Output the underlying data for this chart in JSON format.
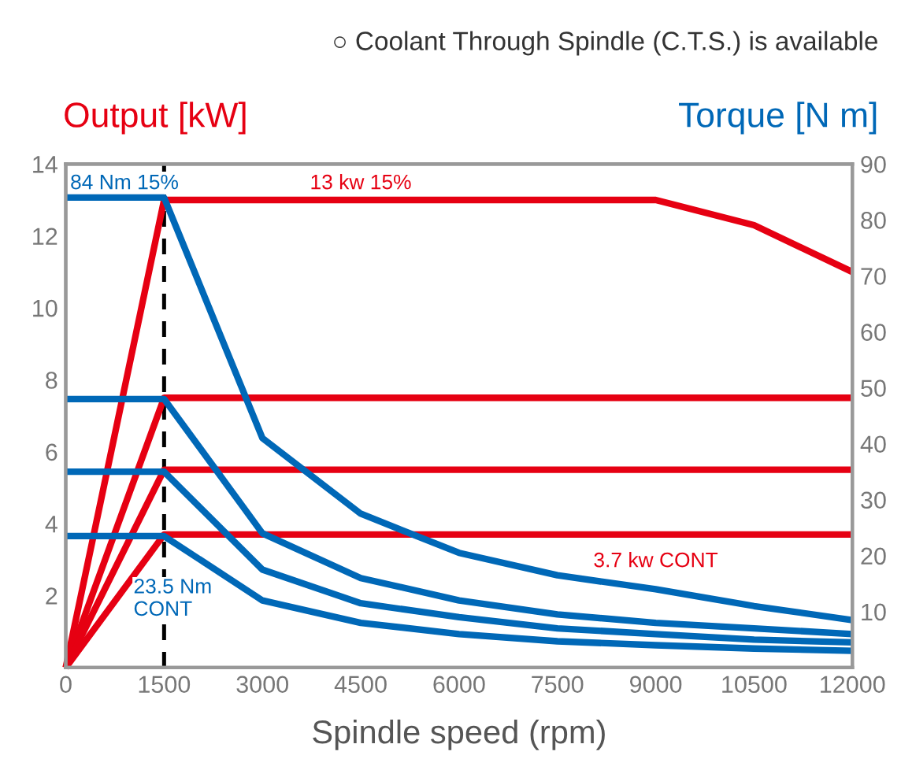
{
  "chart_data": {
    "type": "line",
    "subtitle": "○ Coolant Through Spindle (C.T.S.) is available",
    "xlabel": "Spindle speed (rpm)",
    "ylabel": "Output [kW]",
    "y2label": "Torque [N m]",
    "series": [
      {
        "color": "#e60012",
        "x": [
          0,
          1500,
          3000,
          4500,
          6000,
          7500,
          9000,
          10500,
          12000
        ],
        "values": [
          0,
          13,
          13,
          13,
          13,
          13,
          13,
          12.3,
          11
        ]
      },
      {
        "color": "#e60012",
        "x": [
          0,
          1500,
          12000
        ],
        "values": [
          0,
          7.5,
          7.5
        ]
      },
      {
        "color": "#e60012",
        "x": [
          0,
          1500,
          12000
        ],
        "values": [
          0,
          5.5,
          5.5
        ]
      },
      {
        "color": "#e60012",
        "x": [
          0,
          1500,
          12000
        ],
        "values": [
          0,
          3.7,
          3.7
        ]
      },
      {
        "color": "#0068b7",
        "axis": "y2",
        "x": [
          0,
          1500,
          3000,
          4500,
          6000,
          7500,
          9000,
          10500,
          12000
        ],
        "values": [
          84,
          84,
          41,
          27.5,
          20.5,
          16.5,
          14,
          11,
          8.5
        ]
      },
      {
        "color": "#0068b7",
        "axis": "y2",
        "x": [
          0,
          1500,
          3000,
          4500,
          6000,
          7500,
          9000,
          10500,
          12000
        ],
        "values": [
          48,
          48,
          24,
          16,
          12,
          9.5,
          8,
          7,
          6
        ]
      },
      {
        "color": "#0068b7",
        "axis": "y2",
        "x": [
          0,
          1500,
          3000,
          4500,
          6000,
          7500,
          9000,
          10500,
          12000
        ],
        "values": [
          35,
          35,
          17.5,
          11.5,
          9,
          7,
          6,
          5,
          4.5
        ]
      },
      {
        "color": "#0068b7",
        "axis": "y2",
        "x": [
          0,
          1500,
          3000,
          4500,
          6000,
          7500,
          9000,
          10500,
          12000
        ],
        "values": [
          23.5,
          23.5,
          12,
          8,
          6,
          4.7,
          4,
          3.4,
          3
        ]
      }
    ],
    "xlim": [
      0,
      12000
    ],
    "xticks": [
      0,
      1500,
      3000,
      4500,
      6000,
      7500,
      9000,
      10500,
      12000
    ],
    "ylim": [
      0,
      14
    ],
    "yticks": [
      2,
      4,
      6,
      8,
      10,
      12,
      14
    ],
    "y2lim": [
      0,
      90
    ],
    "y2ticks": [
      10,
      20,
      30,
      40,
      50,
      60,
      70,
      80,
      90
    ],
    "ref_lines": [
      {
        "axis": "x",
        "value": 1500,
        "label": null,
        "color": "#000000",
        "line_style": "dashed"
      }
    ],
    "annotations": [
      {
        "text": "84 Nm 15%",
        "x": 0,
        "y": 13
      },
      {
        "text": "13 kw 15%",
        "x": 4500,
        "y": 13
      },
      {
        "text": "23.5 Nm\nCONT",
        "x": 1500,
        "y": 3.7
      },
      {
        "text": "3.7 kw CONT",
        "x": 9000,
        "y": 3.7
      }
    ],
    "grid": false,
    "legend": false
  }
}
